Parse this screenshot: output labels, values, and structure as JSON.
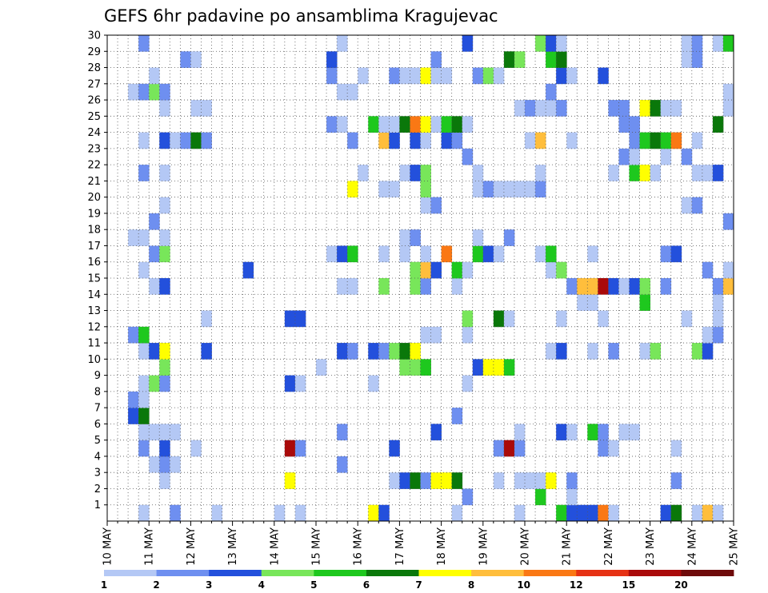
{
  "chart_data": {
    "type": "heatmap",
    "title": "GEFS 6hr padavine po ansamblima Kragujevac",
    "xlabel": "",
    "ylabel": "",
    "x_tick_labels": [
      "10 MAY",
      "11 MAY",
      "12 MAY",
      "13 MAY",
      "14 MAY",
      "15 MAY",
      "16 MAY",
      "17 MAY",
      "18 MAY",
      "19 MAY",
      "20 MAY",
      "21 MAY",
      "22 MAY",
      "23 MAY",
      "24 MAY",
      "25 MAY"
    ],
    "y_tick_labels": [
      "1",
      "2",
      "3",
      "4",
      "5",
      "6",
      "7",
      "8",
      "9",
      "10",
      "11",
      "12",
      "13",
      "14",
      "15",
      "16",
      "17",
      "18",
      "19",
      "20",
      "21",
      "22",
      "23",
      "24",
      "25",
      "26",
      "27",
      "28",
      "29",
      "30"
    ],
    "x_time_steps": 60,
    "step_hours": 6,
    "members": 30,
    "grid": "dotted",
    "colorbar": {
      "placement": "bottom",
      "levels": [
        "1",
        "2",
        "3",
        "4",
        "5",
        "6",
        "7",
        "8",
        "10",
        "12",
        "15",
        "20"
      ],
      "colors": [
        "#b4c8f5",
        "#6e8ff0",
        "#2350dc",
        "#78e65a",
        "#1ec81e",
        "#0a780a",
        "#ffff00",
        "#ffbe3c",
        "#fa7814",
        "#e63214",
        "#aa0a0a",
        "#6e0a0a"
      ]
    },
    "cells": [
      [
        1,
        3,
        1
      ],
      [
        1,
        6,
        2
      ],
      [
        1,
        10,
        1
      ],
      [
        1,
        16,
        1
      ],
      [
        1,
        18,
        1
      ],
      [
        1,
        25,
        7
      ],
      [
        1,
        26,
        3
      ],
      [
        1,
        33,
        1
      ],
      [
        1,
        39,
        1
      ],
      [
        1,
        43,
        5
      ],
      [
        1,
        44,
        3
      ],
      [
        1,
        45,
        3
      ],
      [
        1,
        46,
        3
      ],
      [
        1,
        47,
        9
      ],
      [
        1,
        48,
        1
      ],
      [
        1,
        53,
        3
      ],
      [
        1,
        54,
        6
      ],
      [
        1,
        56,
        1
      ],
      [
        1,
        57,
        8
      ],
      [
        1,
        58,
        1
      ],
      [
        2,
        34,
        2
      ],
      [
        2,
        41,
        5
      ],
      [
        2,
        44,
        1
      ],
      [
        3,
        5,
        1
      ],
      [
        3,
        17,
        7
      ],
      [
        3,
        27,
        1
      ],
      [
        3,
        28,
        3
      ],
      [
        3,
        29,
        6
      ],
      [
        3,
        30,
        2
      ],
      [
        3,
        31,
        7
      ],
      [
        3,
        32,
        7
      ],
      [
        3,
        33,
        6
      ],
      [
        3,
        37,
        1
      ],
      [
        3,
        39,
        1
      ],
      [
        3,
        40,
        1
      ],
      [
        3,
        41,
        1
      ],
      [
        3,
        42,
        7
      ],
      [
        3,
        44,
        2
      ],
      [
        3,
        54,
        2
      ],
      [
        4,
        4,
        1
      ],
      [
        4,
        5,
        2
      ],
      [
        4,
        6,
        1
      ],
      [
        4,
        22,
        2
      ],
      [
        5,
        3,
        2
      ],
      [
        5,
        5,
        3
      ],
      [
        5,
        8,
        1
      ],
      [
        5,
        17,
        11
      ],
      [
        5,
        18,
        2
      ],
      [
        5,
        27,
        3
      ],
      [
        5,
        37,
        2
      ],
      [
        5,
        38,
        11
      ],
      [
        5,
        39,
        2
      ],
      [
        5,
        47,
        2
      ],
      [
        5,
        48,
        1
      ],
      [
        5,
        54,
        1
      ],
      [
        6,
        3,
        1
      ],
      [
        6,
        4,
        1
      ],
      [
        6,
        5,
        1
      ],
      [
        6,
        6,
        1
      ],
      [
        6,
        22,
        2
      ],
      [
        6,
        31,
        3
      ],
      [
        6,
        39,
        1
      ],
      [
        6,
        43,
        3
      ],
      [
        6,
        44,
        1
      ],
      [
        6,
        46,
        5
      ],
      [
        6,
        47,
        2
      ],
      [
        6,
        49,
        1
      ],
      [
        6,
        50,
        1
      ],
      [
        7,
        2,
        3
      ],
      [
        7,
        3,
        6
      ],
      [
        7,
        33,
        2
      ],
      [
        8,
        2,
        2
      ],
      [
        8,
        3,
        1
      ],
      [
        9,
        3,
        1
      ],
      [
        9,
        4,
        4
      ],
      [
        9,
        5,
        2
      ],
      [
        9,
        17,
        3
      ],
      [
        9,
        18,
        1
      ],
      [
        9,
        25,
        1
      ],
      [
        9,
        34,
        1
      ],
      [
        10,
        5,
        4
      ],
      [
        10,
        20,
        1
      ],
      [
        10,
        28,
        4
      ],
      [
        10,
        29,
        4
      ],
      [
        10,
        30,
        5
      ],
      [
        10,
        35,
        3
      ],
      [
        10,
        36,
        7
      ],
      [
        10,
        37,
        7
      ],
      [
        10,
        38,
        5
      ],
      [
        11,
        3,
        1
      ],
      [
        11,
        4,
        3
      ],
      [
        11,
        5,
        7
      ],
      [
        11,
        9,
        3
      ],
      [
        11,
        22,
        3
      ],
      [
        11,
        23,
        2
      ],
      [
        11,
        25,
        3
      ],
      [
        11,
        26,
        2
      ],
      [
        11,
        27,
        4
      ],
      [
        11,
        28,
        6
      ],
      [
        11,
        29,
        7
      ],
      [
        11,
        42,
        1
      ],
      [
        11,
        43,
        3
      ],
      [
        11,
        46,
        1
      ],
      [
        11,
        48,
        2
      ],
      [
        11,
        51,
        1
      ],
      [
        11,
        52,
        4
      ],
      [
        11,
        56,
        4
      ],
      [
        11,
        57,
        3
      ],
      [
        12,
        2,
        2
      ],
      [
        12,
        3,
        5
      ],
      [
        12,
        30,
        1
      ],
      [
        12,
        31,
        1
      ],
      [
        12,
        34,
        1
      ],
      [
        12,
        57,
        1
      ],
      [
        12,
        58,
        2
      ],
      [
        13,
        9,
        1
      ],
      [
        13,
        17,
        3
      ],
      [
        13,
        18,
        3
      ],
      [
        13,
        34,
        4
      ],
      [
        13,
        37,
        6
      ],
      [
        13,
        38,
        1
      ],
      [
        13,
        43,
        1
      ],
      [
        13,
        47,
        1
      ],
      [
        13,
        55,
        1
      ],
      [
        13,
        58,
        1
      ],
      [
        14,
        45,
        1
      ],
      [
        14,
        46,
        1
      ],
      [
        14,
        51,
        5
      ],
      [
        14,
        58,
        1
      ],
      [
        15,
        4,
        1
      ],
      [
        15,
        5,
        3
      ],
      [
        15,
        22,
        1
      ],
      [
        15,
        23,
        1
      ],
      [
        15,
        26,
        4
      ],
      [
        15,
        29,
        4
      ],
      [
        15,
        30,
        2
      ],
      [
        15,
        33,
        1
      ],
      [
        15,
        44,
        2
      ],
      [
        15,
        45,
        8
      ],
      [
        15,
        46,
        8
      ],
      [
        15,
        47,
        11
      ],
      [
        15,
        48,
        3
      ],
      [
        15,
        49,
        1
      ],
      [
        15,
        50,
        3
      ],
      [
        15,
        51,
        4
      ],
      [
        15,
        53,
        2
      ],
      [
        15,
        58,
        2
      ],
      [
        15,
        59,
        8
      ],
      [
        16,
        3,
        1
      ],
      [
        16,
        13,
        3
      ],
      [
        16,
        29,
        4
      ],
      [
        16,
        30,
        8
      ],
      [
        16,
        31,
        3
      ],
      [
        16,
        33,
        5
      ],
      [
        16,
        34,
        1
      ],
      [
        16,
        42,
        1
      ],
      [
        16,
        43,
        4
      ],
      [
        16,
        57,
        2
      ],
      [
        16,
        59,
        1
      ],
      [
        17,
        4,
        2
      ],
      [
        17,
        5,
        4
      ],
      [
        17,
        21,
        1
      ],
      [
        17,
        22,
        3
      ],
      [
        17,
        23,
        5
      ],
      [
        17,
        26,
        1
      ],
      [
        17,
        28,
        1
      ],
      [
        17,
        30,
        1
      ],
      [
        17,
        32,
        9
      ],
      [
        17,
        35,
        5
      ],
      [
        17,
        36,
        3
      ],
      [
        17,
        37,
        1
      ],
      [
        17,
        41,
        1
      ],
      [
        17,
        42,
        5
      ],
      [
        17,
        46,
        1
      ],
      [
        17,
        53,
        2
      ],
      [
        17,
        54,
        3
      ],
      [
        18,
        2,
        1
      ],
      [
        18,
        3,
        1
      ],
      [
        18,
        5,
        1
      ],
      [
        18,
        28,
        1
      ],
      [
        18,
        29,
        2
      ],
      [
        18,
        35,
        1
      ],
      [
        18,
        38,
        2
      ],
      [
        19,
        4,
        2
      ],
      [
        19,
        59,
        2
      ],
      [
        20,
        5,
        1
      ],
      [
        20,
        30,
        1
      ],
      [
        20,
        31,
        2
      ],
      [
        20,
        55,
        1
      ],
      [
        20,
        56,
        2
      ],
      [
        21,
        23,
        7
      ],
      [
        21,
        26,
        1
      ],
      [
        21,
        27,
        1
      ],
      [
        21,
        30,
        4
      ],
      [
        21,
        35,
        1
      ],
      [
        21,
        36,
        2
      ],
      [
        21,
        37,
        1
      ],
      [
        21,
        38,
        1
      ],
      [
        21,
        39,
        1
      ],
      [
        21,
        40,
        1
      ],
      [
        21,
        41,
        2
      ],
      [
        22,
        3,
        2
      ],
      [
        22,
        5,
        1
      ],
      [
        22,
        24,
        1
      ],
      [
        22,
        28,
        1
      ],
      [
        22,
        29,
        3
      ],
      [
        22,
        30,
        4
      ],
      [
        22,
        35,
        1
      ],
      [
        22,
        41,
        1
      ],
      [
        22,
        48,
        1
      ],
      [
        22,
        50,
        5
      ],
      [
        22,
        51,
        7
      ],
      [
        22,
        52,
        1
      ],
      [
        22,
        56,
        1
      ],
      [
        22,
        57,
        1
      ],
      [
        22,
        58,
        3
      ],
      [
        23,
        34,
        2
      ],
      [
        23,
        49,
        2
      ],
      [
        23,
        50,
        1
      ],
      [
        23,
        53,
        1
      ],
      [
        23,
        55,
        2
      ],
      [
        24,
        3,
        1
      ],
      [
        24,
        5,
        3
      ],
      [
        24,
        6,
        1
      ],
      [
        24,
        7,
        2
      ],
      [
        24,
        8,
        6
      ],
      [
        24,
        9,
        2
      ],
      [
        24,
        23,
        2
      ],
      [
        24,
        26,
        8
      ],
      [
        24,
        27,
        3
      ],
      [
        24,
        29,
        3
      ],
      [
        24,
        30,
        1
      ],
      [
        24,
        32,
        3
      ],
      [
        24,
        33,
        2
      ],
      [
        24,
        40,
        1
      ],
      [
        24,
        41,
        8
      ],
      [
        24,
        44,
        1
      ],
      [
        24,
        50,
        2
      ],
      [
        24,
        51,
        5
      ],
      [
        24,
        52,
        6
      ],
      [
        24,
        53,
        5
      ],
      [
        24,
        54,
        9
      ],
      [
        24,
        56,
        1
      ],
      [
        25,
        21,
        2
      ],
      [
        25,
        22,
        1
      ],
      [
        25,
        25,
        5
      ],
      [
        25,
        26,
        1
      ],
      [
        25,
        27,
        1
      ],
      [
        25,
        28,
        6
      ],
      [
        25,
        29,
        9
      ],
      [
        25,
        30,
        7
      ],
      [
        25,
        31,
        1
      ],
      [
        25,
        32,
        5
      ],
      [
        25,
        33,
        6
      ],
      [
        25,
        34,
        1
      ],
      [
        25,
        49,
        2
      ],
      [
        25,
        50,
        2
      ],
      [
        25,
        58,
        6
      ],
      [
        26,
        5,
        1
      ],
      [
        26,
        8,
        1
      ],
      [
        26,
        9,
        1
      ],
      [
        26,
        39,
        1
      ],
      [
        26,
        40,
        2
      ],
      [
        26,
        41,
        1
      ],
      [
        26,
        42,
        1
      ],
      [
        26,
        43,
        2
      ],
      [
        26,
        48,
        2
      ],
      [
        26,
        49,
        2
      ],
      [
        26,
        51,
        7
      ],
      [
        26,
        52,
        6
      ],
      [
        26,
        53,
        1
      ],
      [
        26,
        54,
        1
      ],
      [
        26,
        59,
        1
      ],
      [
        27,
        2,
        1
      ],
      [
        27,
        3,
        2
      ],
      [
        27,
        4,
        4
      ],
      [
        27,
        5,
        2
      ],
      [
        27,
        22,
        1
      ],
      [
        27,
        23,
        1
      ],
      [
        27,
        42,
        2
      ],
      [
        27,
        59,
        1
      ],
      [
        28,
        4,
        1
      ],
      [
        28,
        21,
        2
      ],
      [
        28,
        24,
        1
      ],
      [
        28,
        27,
        2
      ],
      [
        28,
        28,
        1
      ],
      [
        28,
        29,
        1
      ],
      [
        28,
        30,
        7
      ],
      [
        28,
        31,
        1
      ],
      [
        28,
        32,
        1
      ],
      [
        28,
        35,
        2
      ],
      [
        28,
        36,
        4
      ],
      [
        28,
        37,
        1
      ],
      [
        28,
        43,
        3
      ],
      [
        28,
        44,
        1
      ],
      [
        28,
        47,
        3
      ],
      [
        29,
        7,
        2
      ],
      [
        29,
        8,
        1
      ],
      [
        29,
        21,
        3
      ],
      [
        29,
        31,
        2
      ],
      [
        29,
        38,
        6
      ],
      [
        29,
        39,
        4
      ],
      [
        29,
        42,
        5
      ],
      [
        29,
        43,
        6
      ],
      [
        29,
        55,
        1
      ],
      [
        29,
        56,
        2
      ],
      [
        30,
        3,
        2
      ],
      [
        30,
        22,
        1
      ],
      [
        30,
        34,
        3
      ],
      [
        30,
        41,
        4
      ],
      [
        30,
        42,
        3
      ],
      [
        30,
        43,
        1
      ],
      [
        30,
        55,
        1
      ],
      [
        30,
        56,
        2
      ],
      [
        30,
        58,
        1
      ],
      [
        30,
        59,
        5
      ]
    ]
  }
}
